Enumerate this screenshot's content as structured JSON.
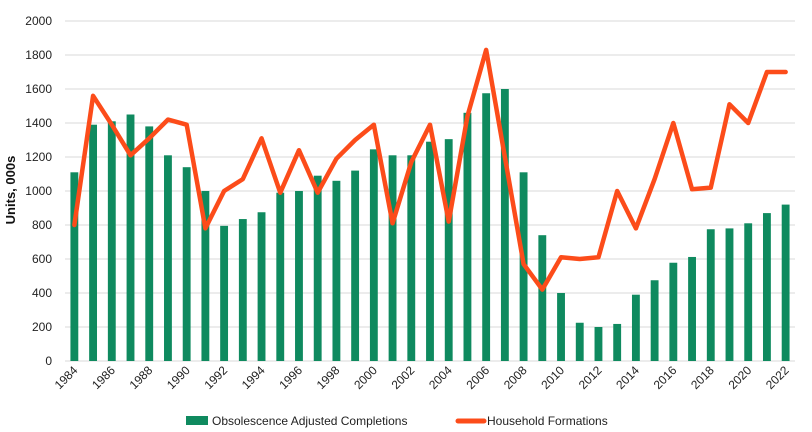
{
  "chart_data": {
    "type": "bar",
    "title": "",
    "xlabel": "",
    "ylabel": "Units, 000s",
    "ylim": [
      0,
      2000
    ],
    "yticks": [
      0,
      200,
      400,
      600,
      800,
      1000,
      1200,
      1400,
      1600,
      1800,
      2000
    ],
    "grid": true,
    "legend_position": "bottom",
    "categories": [
      "1984",
      "1985",
      "1986",
      "1987",
      "1988",
      "1989",
      "1990",
      "1991",
      "1992",
      "1993",
      "1994",
      "1995",
      "1996",
      "1997",
      "1998",
      "1999",
      "2000",
      "2001",
      "2002",
      "2003",
      "2004",
      "2005",
      "2006",
      "2007",
      "2008",
      "2009",
      "2010",
      "2011",
      "2012",
      "2013",
      "2014",
      "2015",
      "2016",
      "2017",
      "2018",
      "2019",
      "2020",
      "2021",
      "2022"
    ],
    "xtick_labels": [
      "1984",
      "1986",
      "1988",
      "1990",
      "1992",
      "1994",
      "1996",
      "1998",
      "2000",
      "2002",
      "2004",
      "2006",
      "2008",
      "2010",
      "2012",
      "2014",
      "2016",
      "2018",
      "2020",
      "2022"
    ],
    "series": [
      {
        "name": "Obsolescence Adjusted Completions",
        "type": "bar",
        "color": "#0f8a5f",
        "values": [
          1110,
          1390,
          1410,
          1450,
          1380,
          1210,
          1140,
          1000,
          795,
          835,
          875,
          990,
          1000,
          1090,
          1060,
          1120,
          1245,
          1210,
          1210,
          1290,
          1305,
          1460,
          1575,
          1600,
          1110,
          740,
          400,
          225,
          200,
          218,
          390,
          475,
          578,
          612,
          775,
          780,
          810,
          870,
          920
        ]
      },
      {
        "name": "Household Formations",
        "type": "line",
        "color": "#fc4c1a",
        "values": [
          800,
          1560,
          1390,
          1210,
          1310,
          1420,
          1390,
          780,
          1000,
          1070,
          1310,
          990,
          1240,
          990,
          1190,
          1300,
          1390,
          810,
          1170,
          1390,
          820,
          1440,
          1830,
          1200,
          570,
          420,
          610,
          600,
          610,
          1000,
          780,
          1070,
          1400,
          1010,
          1020,
          1510,
          1400,
          1700,
          1700
        ]
      }
    ]
  }
}
